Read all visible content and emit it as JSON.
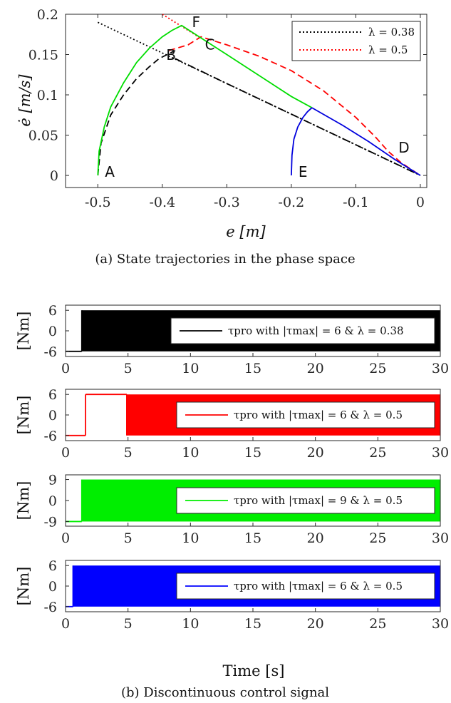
{
  "figure": {
    "caption_a": "(a) State trajectories in the phase space",
    "caption_b": "(b) Discontinuous control signal"
  },
  "chart_data": [
    {
      "type": "line",
      "xlabel": "e [m]",
      "ylabel": "ė [m/s]",
      "xlim": [
        -0.55,
        0.01
      ],
      "ylim": [
        -0.015,
        0.2
      ],
      "x_ticks": [
        "-0.5",
        "-0.4",
        "-0.3",
        "-0.2",
        "-0.1",
        "0"
      ],
      "y_ticks": [
        "0",
        "0.05",
        "0.1",
        "0.15",
        "0.2"
      ],
      "grid": false,
      "legend_position": "top-right",
      "legend": [
        {
          "label": "λ = 0.38",
          "color": "#000000",
          "style": "dotted"
        },
        {
          "label": "λ = 0.5",
          "color": "#ff0000",
          "style": "dotted"
        }
      ],
      "point_labels": [
        {
          "text": "A",
          "x": -0.5,
          "y": 0
        },
        {
          "text": "B",
          "x": -0.405,
          "y": 0.145
        },
        {
          "text": "C",
          "x": -0.345,
          "y": 0.158
        },
        {
          "text": "D",
          "x": -0.045,
          "y": 0.03
        },
        {
          "text": "E",
          "x": -0.2,
          "y": 0
        },
        {
          "text": "F",
          "x": -0.365,
          "y": 0.186
        }
      ],
      "series": [
        {
          "id": "switch_038",
          "color": "#000000",
          "style": "dotted",
          "x": [
            -0.5,
            -0.4,
            -0.3,
            -0.2,
            -0.1,
            0.0
          ],
          "y": [
            0.19,
            0.152,
            0.114,
            0.076,
            0.038,
            0.0
          ]
        },
        {
          "id": "switch_05",
          "color": "#ff0000",
          "style": "dotted",
          "x": [
            -0.4,
            -0.37,
            -0.34
          ],
          "y": [
            0.2,
            0.185,
            0.17
          ]
        },
        {
          "id": "traj_black",
          "color": "#000000",
          "style": "dashed",
          "x": [
            -0.5,
            -0.495,
            -0.48,
            -0.46,
            -0.44,
            -0.42,
            -0.405,
            -0.39,
            -0.38
          ],
          "y": [
            0.0,
            0.04,
            0.075,
            0.1,
            0.12,
            0.135,
            0.145,
            0.151,
            0.155
          ]
        },
        {
          "id": "traj_black_slide",
          "color": "#000000",
          "style": "dashdot",
          "x": [
            -0.38,
            -0.3,
            -0.2,
            -0.1,
            0.0
          ],
          "y": [
            0.145,
            0.114,
            0.076,
            0.038,
            0.0
          ]
        },
        {
          "id": "traj_red",
          "color": "#ff0000",
          "style": "dashed",
          "x": [
            -0.39,
            -0.36,
            -0.34,
            -0.3,
            -0.25,
            -0.2,
            -0.15,
            -0.1,
            -0.07,
            -0.05,
            -0.03,
            0.0
          ],
          "y": [
            0.155,
            0.162,
            0.172,
            0.162,
            0.148,
            0.13,
            0.105,
            0.072,
            0.048,
            0.03,
            0.016,
            0.0
          ]
        },
        {
          "id": "traj_green",
          "color": "#00dd00",
          "style": "solid",
          "x": [
            -0.5,
            -0.498,
            -0.49,
            -0.48,
            -0.46,
            -0.44,
            -0.42,
            -0.4,
            -0.385,
            -0.37,
            -0.3,
            -0.2,
            -0.168
          ],
          "y": [
            0.0,
            0.03,
            0.06,
            0.085,
            0.115,
            0.14,
            0.158,
            0.172,
            0.18,
            0.186,
            0.15,
            0.098,
            0.084
          ]
        },
        {
          "id": "traj_blue_curve",
          "color": "#0000dd",
          "style": "solid",
          "x": [
            -0.2,
            -0.199,
            -0.196,
            -0.19,
            -0.182,
            -0.175,
            -0.168
          ],
          "y": [
            0.0,
            0.025,
            0.045,
            0.06,
            0.072,
            0.079,
            0.084
          ]
        },
        {
          "id": "traj_blue_slide",
          "color": "#0000dd",
          "style": "solid",
          "x": [
            -0.168,
            -0.12,
            -0.08,
            -0.04,
            0.0
          ],
          "y": [
            0.084,
            0.062,
            0.042,
            0.02,
            0.0
          ]
        }
      ]
    },
    {
      "type": "line",
      "ylabel": "[Nm]",
      "xlim": [
        0,
        30
      ],
      "ylim": [
        -7.5,
        7.5
      ],
      "y_ticks": [
        "-6",
        "0",
        "6"
      ],
      "x_ticks": [
        "0",
        "5",
        "10",
        "15",
        "20",
        "25",
        "30"
      ],
      "legend_position": "right",
      "color": "#000000",
      "legend_label": "τpro with |τmax| = 6 & λ = 0.38",
      "amplitude": 6,
      "x": [
        0,
        1.3,
        30
      ],
      "segments": [
        {
          "from": 0,
          "to": 1.3,
          "value": -6
        },
        {
          "from": 1.3,
          "to": 30,
          "value": "switching ±6"
        }
      ]
    },
    {
      "type": "line",
      "ylabel": "[Nm]",
      "xlim": [
        0,
        30
      ],
      "ylim": [
        -7.5,
        7.5
      ],
      "y_ticks": [
        "-6",
        "0",
        "6"
      ],
      "x_ticks": [
        "0",
        "5",
        "10",
        "15",
        "20",
        "25",
        "30"
      ],
      "legend_position": "right",
      "color": "#ff0000",
      "legend_label": "τpro with |τmax| = 6 & λ = 0.5",
      "amplitude": 6,
      "x": [
        0,
        1.6,
        4.9,
        30
      ],
      "segments": [
        {
          "from": 0,
          "to": 1.6,
          "value": -6
        },
        {
          "from": 1.6,
          "to": 4.9,
          "value": 6
        },
        {
          "from": 4.9,
          "to": 30,
          "value": "switching ±6"
        }
      ]
    },
    {
      "type": "line",
      "ylabel": "[Nm]",
      "xlim": [
        0,
        30
      ],
      "ylim": [
        -11,
        11
      ],
      "y_ticks": [
        "-9",
        "0",
        "9"
      ],
      "x_ticks": [
        "0",
        "5",
        "10",
        "15",
        "20",
        "25",
        "30"
      ],
      "legend_position": "right",
      "color": "#00ee00",
      "legend_label": "τpro with |τmax| = 9 & λ = 0.5",
      "amplitude": 9,
      "x": [
        0,
        1.3,
        30
      ],
      "segments": [
        {
          "from": 0,
          "to": 1.3,
          "value": -9
        },
        {
          "from": 1.3,
          "to": 30,
          "value": "switching ±9"
        }
      ]
    },
    {
      "type": "line",
      "ylabel": "[Nm]",
      "xlabel": "Time [s]",
      "xlim": [
        0,
        30
      ],
      "ylim": [
        -7.5,
        7.5
      ],
      "y_ticks": [
        "-6",
        "0",
        "6"
      ],
      "x_ticks": [
        "0",
        "5",
        "10",
        "15",
        "20",
        "25",
        "30"
      ],
      "legend_position": "right",
      "color": "#0000ff",
      "legend_label": "τpro with |τmax| = 6 & λ = 0.5",
      "amplitude": 6,
      "x": [
        0,
        0.6,
        30
      ],
      "segments": [
        {
          "from": 0,
          "to": 0.6,
          "value": -6
        },
        {
          "from": 0.6,
          "to": 30,
          "value": "switching ±6"
        }
      ]
    }
  ]
}
